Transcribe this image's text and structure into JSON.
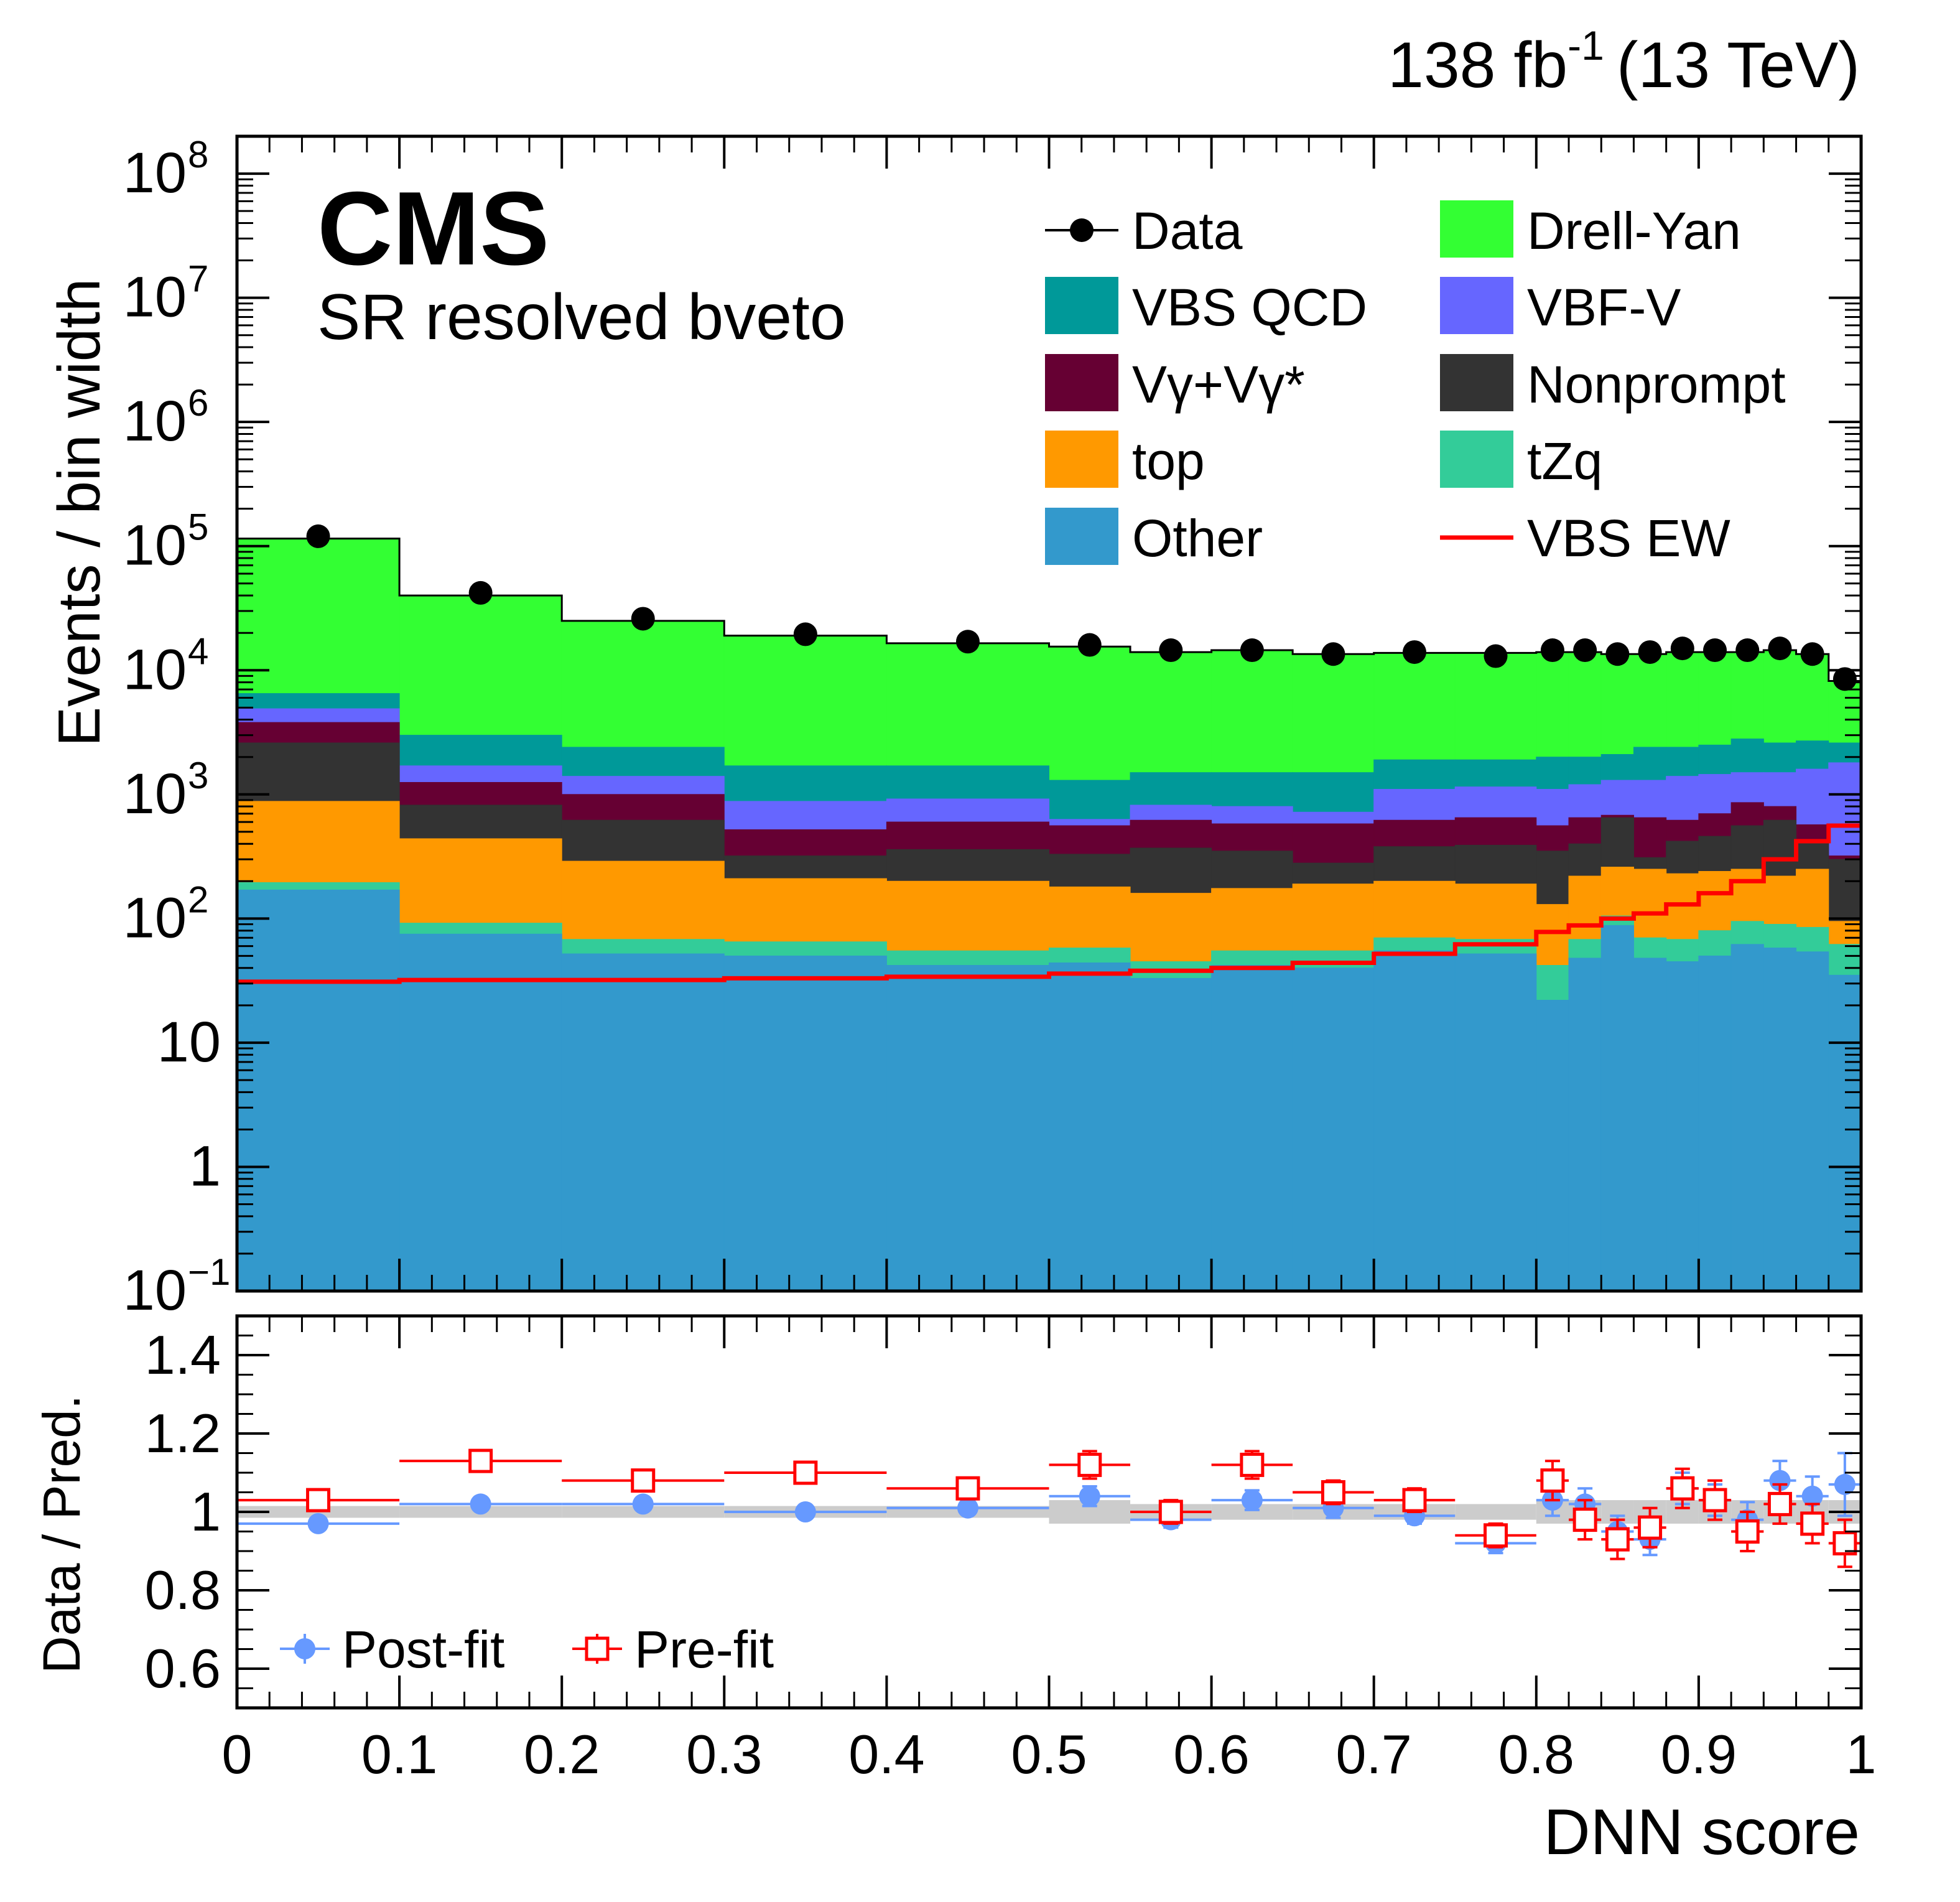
{
  "lumi_label": "138 fb",
  "lumi_exp": "-1",
  "energy_label": "(13 TeV)",
  "experiment": "CMS",
  "region": "SR resolved bveto",
  "chart_data": [
    {
      "type": "stacked-histogram",
      "yscale": "log",
      "ylabel": "Events / bin width",
      "ylim": [
        0.1,
        200000000
      ],
      "xlim": [
        0,
        1
      ],
      "ytick_values": [
        0.1,
        1,
        10,
        100,
        1000,
        10000,
        100000,
        1000000,
        10000000,
        100000000
      ],
      "ytick_labels": [
        {
          "base": "10",
          "exp": "−1"
        },
        {
          "base": "1",
          "exp": ""
        },
        {
          "base": "10",
          "exp": ""
        },
        {
          "base": "10",
          "exp": "2"
        },
        {
          "base": "10",
          "exp": "3"
        },
        {
          "base": "10",
          "exp": "4"
        },
        {
          "base": "10",
          "exp": "5"
        },
        {
          "base": "10",
          "exp": "6"
        },
        {
          "base": "10",
          "exp": "7"
        },
        {
          "base": "10",
          "exp": "8"
        }
      ],
      "bin_edges": [
        0,
        0.1,
        0.2,
        0.3,
        0.4,
        0.5,
        0.55,
        0.6,
        0.65,
        0.7,
        0.75,
        0.8,
        0.82,
        0.84,
        0.86,
        0.88,
        0.9,
        0.92,
        0.94,
        0.96,
        0.98,
        1.0
      ],
      "stack_order_bottom_to_top": [
        "Other",
        "tZq",
        "top",
        "Nonprompt",
        "Vγ+Vγ*",
        "VBF-V",
        "VBS QCD",
        "Drell-Yan"
      ],
      "stack_cumulative": {
        "Other": [
          170,
          75,
          52,
          50,
          42,
          44,
          33,
          42,
          40,
          55,
          52,
          22,
          48,
          88,
          48,
          45,
          50,
          62,
          58,
          54,
          35
        ],
        "tZq": [
          195,
          92,
          68,
          65,
          55,
          58,
          45,
          55,
          55,
          70,
          68,
          42,
          68,
          105,
          70,
          68,
          80,
          95,
          90,
          85,
          62
        ],
        "top": [
          880,
          440,
          290,
          210,
          200,
          180,
          160,
          175,
          190,
          200,
          190,
          130,
          220,
          260,
          250,
          230,
          240,
          250,
          220,
          250,
          95
        ],
        "Nonprompt": [
          2600,
          820,
          620,
          320,
          360,
          330,
          370,
          350,
          280,
          380,
          390,
          350,
          400,
          650,
          310,
          420,
          460,
          560,
          620,
          420,
          300
        ],
        "Vγ+Vγ*": [
          3800,
          1250,
          1000,
          520,
          600,
          560,
          620,
          580,
          580,
          620,
          650,
          560,
          650,
          680,
          650,
          620,
          700,
          860,
          800,
          570,
          320
        ],
        "VBF-V": [
          4900,
          1700,
          1400,
          880,
          920,
          630,
          820,
          800,
          720,
          1100,
          1150,
          1100,
          1200,
          1300,
          1300,
          1400,
          1450,
          1500,
          1500,
          1600,
          1800
        ],
        "VBS QCD": [
          6500,
          3000,
          2400,
          1700,
          1700,
          1300,
          1500,
          1500,
          1500,
          1900,
          1900,
          2000,
          2000,
          2100,
          2400,
          2400,
          2500,
          2800,
          2600,
          2700,
          2600
        ],
        "Drell-Yan": [
          115000,
          40000,
          25000,
          19000,
          16500,
          15500,
          14000,
          14500,
          13500,
          13800,
          13800,
          14000,
          14000,
          13500,
          13500,
          14000,
          14000,
          14000,
          14500,
          13500,
          8200
        ]
      },
      "vbs_ew": [
        31,
        32,
        32,
        33,
        34,
        36,
        38,
        40,
        44,
        52,
        62,
        78,
        88,
        100,
        110,
        130,
        160,
        200,
        300,
        420,
        560
      ],
      "data_x": [
        0.05,
        0.15,
        0.25,
        0.35,
        0.45,
        0.525,
        0.575,
        0.625,
        0.675,
        0.725,
        0.775,
        0.81,
        0.83,
        0.85,
        0.87,
        0.89,
        0.91,
        0.93,
        0.95,
        0.97,
        0.99
      ],
      "data_y": [
        120000,
        42000,
        26000,
        19500,
        17000,
        16000,
        14500,
        14500,
        13500,
        14000,
        13000,
        14500,
        14500,
        13500,
        14000,
        15000,
        14500,
        14500,
        15000,
        13500,
        8500
      ],
      "legend": [
        {
          "label": "Data",
          "marker": "point",
          "color": "#000000"
        },
        {
          "label": "Drell-Yan",
          "marker": "box",
          "color": "#33ff33"
        },
        {
          "label": "VBS QCD",
          "marker": "box",
          "color": "#009999"
        },
        {
          "label": "VBF-V",
          "marker": "box",
          "color": "#6666ff"
        },
        {
          "label": "Vγ+Vγ*",
          "marker": "box",
          "color": "#660033"
        },
        {
          "label": "Nonprompt",
          "marker": "box",
          "color": "#333333"
        },
        {
          "label": "top",
          "marker": "box",
          "color": "#ff9900"
        },
        {
          "label": "tZq",
          "marker": "box",
          "color": "#33cc99"
        },
        {
          "label": "Other",
          "marker": "box",
          "color": "#3399cc"
        },
        {
          "label": "VBS EW",
          "marker": "line",
          "color": "#ff0000"
        }
      ]
    },
    {
      "type": "scatter",
      "ylabel": "Data / Pred.",
      "xlabel": "DNN score",
      "ylim": [
        0.5,
        1.5
      ],
      "xlim": [
        0,
        1
      ],
      "ytick_values": [
        0.6,
        0.8,
        1,
        1.2,
        1.4
      ],
      "ytick_labels": [
        "0.6",
        "0.8",
        "1",
        "1.2",
        "1.4"
      ],
      "xtick_values": [
        0,
        0.1,
        0.2,
        0.3,
        0.4,
        0.5,
        0.6,
        0.7,
        0.8,
        0.9,
        1
      ],
      "xtick_labels": [
        "0",
        "0.1",
        "0.2",
        "0.3",
        "0.4",
        "0.5",
        "0.6",
        "0.7",
        "0.8",
        "0.9",
        "1"
      ],
      "uncertainty_band": [
        0.015,
        0.015,
        0.015,
        0.015,
        0.015,
        0.03,
        0.02,
        0.02,
        0.02,
        0.02,
        0.02,
        0.03,
        0.03,
        0.03,
        0.03,
        0.03,
        0.03,
        0.03,
        0.03,
        0.03,
        0.03
      ],
      "series": [
        {
          "name": "Post-fit",
          "color": "#6699ff",
          "x": [
            0.05,
            0.15,
            0.25,
            0.35,
            0.45,
            0.525,
            0.575,
            0.625,
            0.675,
            0.725,
            0.775,
            0.81,
            0.83,
            0.85,
            0.87,
            0.89,
            0.91,
            0.93,
            0.95,
            0.97,
            0.99
          ],
          "y": [
            0.97,
            1.02,
            1.02,
            1.0,
            1.01,
            1.04,
            0.98,
            1.03,
            1.01,
            0.99,
            0.92,
            1.03,
            1.02,
            0.95,
            0.93,
            1.06,
            1.03,
            0.98,
            1.08,
            1.04,
            1.07
          ],
          "err": [
            0.005,
            0.005,
            0.006,
            0.006,
            0.008,
            0.025,
            0.02,
            0.025,
            0.025,
            0.02,
            0.025,
            0.04,
            0.04,
            0.04,
            0.04,
            0.04,
            0.04,
            0.045,
            0.05,
            0.05,
            0.08
          ]
        },
        {
          "name": "Pre-fit",
          "color": "#ff0000",
          "x": [
            0.05,
            0.15,
            0.25,
            0.35,
            0.45,
            0.525,
            0.575,
            0.625,
            0.675,
            0.725,
            0.775,
            0.81,
            0.83,
            0.85,
            0.87,
            0.89,
            0.91,
            0.93,
            0.95,
            0.97,
            0.99
          ],
          "y": [
            1.03,
            1.13,
            1.08,
            1.1,
            1.06,
            1.12,
            1.0,
            1.12,
            1.05,
            1.03,
            0.94,
            1.08,
            0.98,
            0.93,
            0.96,
            1.06,
            1.03,
            0.95,
            1.02,
            0.97,
            0.92
          ],
          "err": [
            0.01,
            0.01,
            0.01,
            0.01,
            0.012,
            0.035,
            0.03,
            0.035,
            0.03,
            0.03,
            0.03,
            0.05,
            0.05,
            0.05,
            0.05,
            0.05,
            0.05,
            0.05,
            0.05,
            0.05,
            0.06
          ]
        }
      ]
    }
  ]
}
